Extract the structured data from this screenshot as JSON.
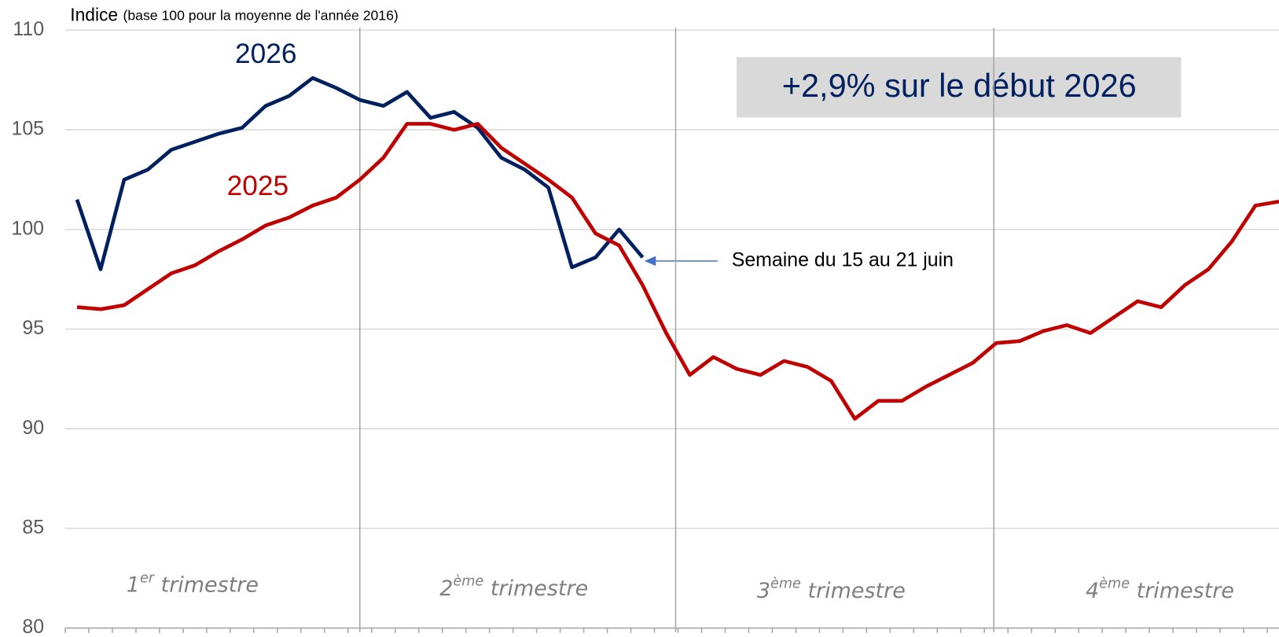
{
  "chart_data": {
    "type": "line",
    "ylabel": "Indice",
    "ylabel_note": "(base 100 pour la moyenne de l'année 2016)",
    "x": [
      1,
      2,
      3,
      4,
      5,
      6,
      7,
      8,
      9,
      10,
      11,
      12,
      13,
      14,
      15,
      16,
      17,
      18,
      19,
      20,
      21,
      22,
      23,
      24,
      25,
      26,
      27,
      28,
      29,
      30,
      31,
      32,
      33,
      34,
      35,
      36,
      37,
      38,
      39,
      40,
      41,
      42,
      43,
      44,
      45,
      46,
      47,
      48,
      49,
      50,
      51,
      52
    ],
    "series": [
      {
        "name": "2026",
        "color": "#002060",
        "values": [
          101.5,
          98.0,
          102.5,
          103.0,
          104.0,
          104.4,
          104.8,
          105.1,
          106.2,
          106.7,
          107.6,
          107.1,
          106.5,
          106.2,
          106.9,
          105.6,
          105.9,
          105.1,
          103.6,
          103.0,
          102.1,
          98.1,
          98.6,
          100.0,
          98.6,
          null,
          null,
          null,
          null,
          null,
          null,
          null,
          null,
          null,
          null,
          null,
          null,
          null,
          null,
          null,
          null,
          null,
          null,
          null,
          null,
          null,
          null,
          null,
          null,
          null,
          null,
          null
        ]
      },
      {
        "name": "2025",
        "color": "#c00000",
        "values": [
          96.1,
          96.0,
          96.2,
          97.0,
          97.8,
          98.2,
          98.9,
          99.5,
          100.2,
          100.6,
          101.2,
          101.6,
          102.5,
          103.6,
          105.3,
          105.3,
          105.0,
          105.3,
          104.1,
          103.3,
          102.5,
          101.6,
          99.8,
          99.2,
          97.2,
          94.8,
          92.7,
          93.6,
          93.0,
          92.7,
          93.4,
          93.1,
          92.4,
          90.5,
          91.4,
          91.4,
          92.1,
          92.7,
          93.3,
          94.3,
          94.4,
          94.9,
          95.2,
          94.8,
          95.6,
          96.4,
          96.1,
          97.2,
          98.0,
          99.4,
          101.2,
          101.4
        ]
      }
    ],
    "xlim": [
      0.5,
      52
    ],
    "xticks": [
      0.5,
      1.5,
      2.5,
      3.5,
      4.5,
      5.5,
      6.5,
      7.5,
      8.5,
      9.5,
      10.5,
      11.5,
      12.5,
      13.5,
      14.5,
      15.5,
      16.5,
      17.5,
      18.5,
      19.5,
      20.5,
      21.5,
      22.5,
      23.5,
      24.5,
      25.5,
      26.5,
      27.5,
      28.5,
      29.5,
      30.5,
      31.5,
      32.5,
      33.5,
      34.5,
      35.5,
      36.5,
      37.5,
      38.5,
      39.5,
      40.5,
      41.5,
      42.5,
      43.5,
      44.5,
      45.5,
      46.5,
      47.5,
      48.5,
      49.5,
      50.5,
      51.5
    ],
    "quarter_lines": [
      13,
      26.4,
      39.9
    ],
    "ylim": [
      80,
      110
    ],
    "yticks": [
      80,
      85,
      90,
      95,
      100,
      105,
      110
    ],
    "grid": true,
    "highlight": "+2,9% sur le début 2026",
    "arrow_annotation": "Semaine du 15 au 21 juin",
    "quarters": [
      {
        "num": "1",
        "sup": "er",
        "text": " trimestre"
      },
      {
        "num": "2",
        "sup": "ème",
        "text": " trimestre"
      },
      {
        "num": "3",
        "sup": "ème",
        "text": " trimestre"
      },
      {
        "num": "4",
        "sup": "ème",
        "text": " trimestre"
      }
    ]
  }
}
